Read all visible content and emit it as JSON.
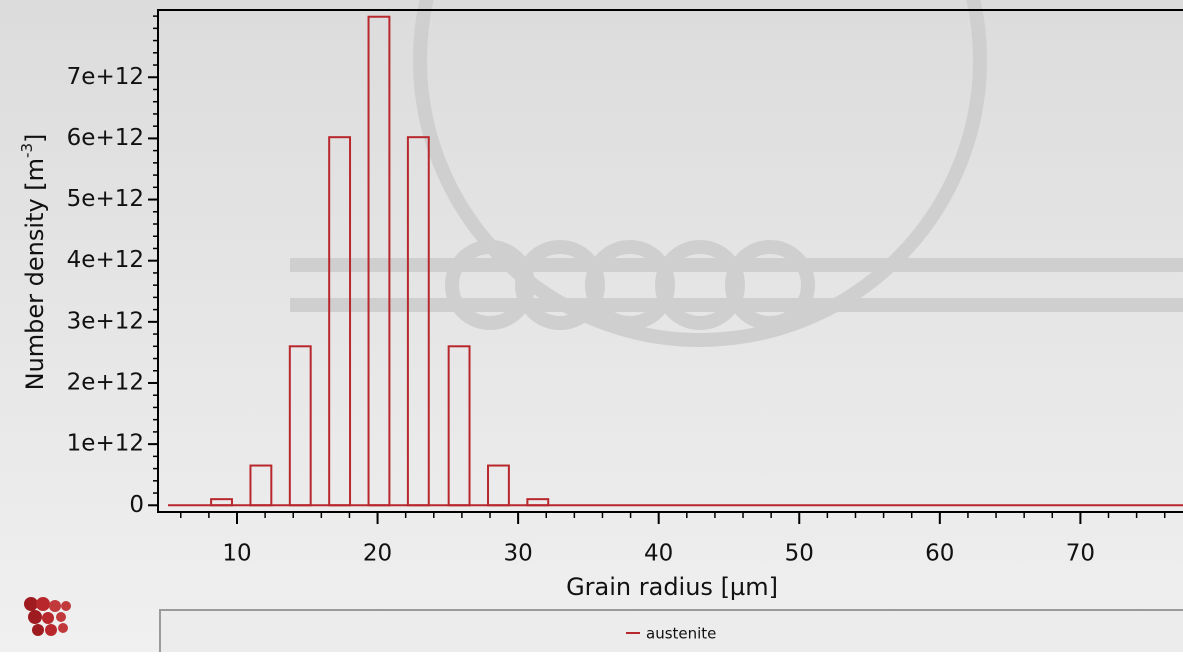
{
  "chart_data": {
    "type": "bar",
    "x_label": "Grain radius [µm]",
    "y_label": {
      "text": "Number density [m",
      "superscript": "-3",
      "suffix": "]"
    },
    "series": [
      {
        "name": "austenite",
        "color": "#b8272c",
        "x": [
          8.9,
          11.7,
          14.5,
          17.3,
          20.1,
          22.9,
          25.8,
          28.6,
          31.4
        ],
        "values": [
          100000000000,
          650000000000,
          2600000000000,
          6020000000000,
          7990000000000,
          6020000000000,
          2600000000000,
          650000000000,
          100000000000
        ]
      }
    ],
    "xlim": [
      4.38,
      77.3
    ],
    "xticks": [
      10,
      20,
      30,
      40,
      50,
      60,
      70
    ],
    "ylim": [
      -110000000000,
      8100000000000
    ],
    "yticks": [
      0,
      {
        "value": 1000000000000,
        "label": "1e+12"
      },
      {
        "value": 2000000000000,
        "label": "2e+12"
      },
      {
        "value": 3000000000000,
        "label": "3e+12"
      },
      {
        "value": 4000000000000,
        "label": "4e+12"
      },
      {
        "value": 5000000000000,
        "label": "5e+12"
      },
      {
        "value": 6000000000000,
        "label": "6e+12"
      },
      {
        "value": 7000000000000,
        "label": "7e+12"
      }
    ],
    "legend": "bottom"
  }
}
